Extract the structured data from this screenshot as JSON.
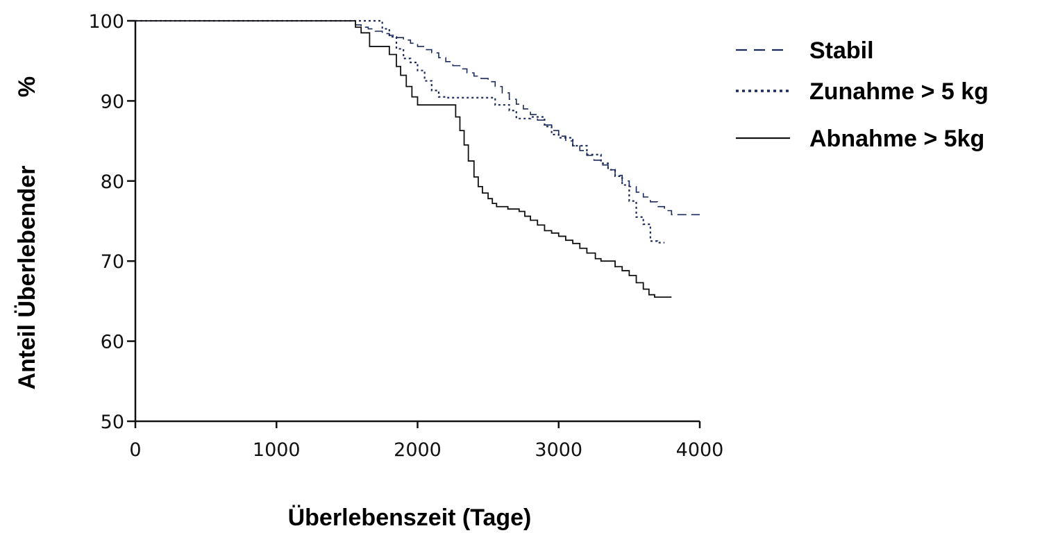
{
  "chart_data": {
    "type": "line",
    "title": "",
    "xlabel": "Überlebenszeit (Tage)",
    "ylabel_left": "Anteil  Überlebender",
    "ylabel_right": "%",
    "xlim": [
      0,
      4000
    ],
    "ylim": [
      50,
      100
    ],
    "xticks": [
      0,
      1000,
      2000,
      3000,
      4000
    ],
    "yticks": [
      50,
      60,
      70,
      80,
      90,
      100
    ],
    "xtick_labels": [
      "0",
      "1000",
      "2000",
      "3000",
      "4000"
    ],
    "ytick_labels": [
      "50",
      "60",
      "70",
      "80",
      "90",
      "100"
    ],
    "grid": false,
    "legend_position": "right",
    "series": [
      {
        "name": "Stabil",
        "style": "dashed",
        "color": "#1a2a5a",
        "x": [
          0,
          1500,
          1560,
          1600,
          1650,
          1700,
          1750,
          1800,
          1850,
          1900,
          1950,
          2000,
          2050,
          2100,
          2150,
          2200,
          2250,
          2300,
          2350,
          2400,
          2450,
          2500,
          2550,
          2600,
          2650,
          2700,
          2750,
          2800,
          2850,
          2900,
          2950,
          3000,
          3050,
          3100,
          3150,
          3200,
          3250,
          3300,
          3350,
          3400,
          3450,
          3500,
          3550,
          3600,
          3650,
          3700,
          3750,
          3800,
          4000
        ],
        "y": [
          100,
          100,
          99.5,
          99.2,
          99,
          98.7,
          98.4,
          98.2,
          97.9,
          97.6,
          97.2,
          96.8,
          96.4,
          96,
          95.4,
          94.9,
          94.4,
          94,
          93.5,
          93.1,
          92.8,
          92.4,
          91.8,
          91,
          90.2,
          89.6,
          89,
          88.3,
          87.6,
          87,
          86.3,
          85.6,
          85,
          84.4,
          83.8,
          83.2,
          82.6,
          82,
          81.4,
          80.7,
          80,
          79.3,
          78.6,
          78,
          77.4,
          76.8,
          76.3,
          75.8,
          75.8
        ]
      },
      {
        "name": "Zunahme > 5 kg",
        "style": "dotted",
        "color": "#1a2a5a",
        "x": [
          0,
          1500,
          1700,
          1750,
          1800,
          1850,
          1900,
          1950,
          2000,
          2050,
          2100,
          2150,
          2200,
          2500,
          2550,
          2600,
          2650,
          2700,
          2750,
          2800,
          2850,
          2900,
          2950,
          3000,
          3100,
          3200,
          3300,
          3350,
          3400,
          3450,
          3500,
          3550,
          3600,
          3650,
          3700,
          3750
        ],
        "y": [
          100,
          100,
          100,
          99,
          98,
          96.5,
          95.3,
          94.8,
          93.8,
          92.5,
          91.3,
          90.5,
          90.4,
          90.4,
          89.5,
          89.5,
          88.8,
          87.8,
          87.8,
          88,
          88,
          86.8,
          85.8,
          85.4,
          84.4,
          83.3,
          82.2,
          81.4,
          80.6,
          79.5,
          77.5,
          75.5,
          74.6,
          72.5,
          72.3,
          72.3
        ]
      },
      {
        "name": "Abnahme > 5kg",
        "style": "solid",
        "color": "#111111",
        "x": [
          0,
          1500,
          1560,
          1600,
          1660,
          1750,
          1800,
          1850,
          1880,
          1920,
          1960,
          2000,
          2230,
          2270,
          2300,
          2330,
          2360,
          2400,
          2430,
          2460,
          2500,
          2530,
          2560,
          2600,
          2640,
          2680,
          2720,
          2760,
          2800,
          2850,
          2900,
          2950,
          3000,
          3050,
          3100,
          3150,
          3200,
          3260,
          3300,
          3400,
          3450,
          3500,
          3550,
          3600,
          3640,
          3680,
          3800
        ],
        "y": [
          100,
          100,
          99.2,
          98.5,
          96.8,
          96.8,
          95.8,
          94.3,
          93.2,
          91.8,
          90.5,
          89.5,
          89.5,
          88,
          86.3,
          84.5,
          82.5,
          80.5,
          79.3,
          78.5,
          77.8,
          77.2,
          76.8,
          76.8,
          76.5,
          76.5,
          76.2,
          75.6,
          75.1,
          74.5,
          73.8,
          73.5,
          73.1,
          72.6,
          72.2,
          71.6,
          71,
          70.3,
          70,
          69.3,
          68.8,
          68.2,
          67.3,
          66.5,
          65.8,
          65.5,
          65.5
        ]
      }
    ]
  }
}
